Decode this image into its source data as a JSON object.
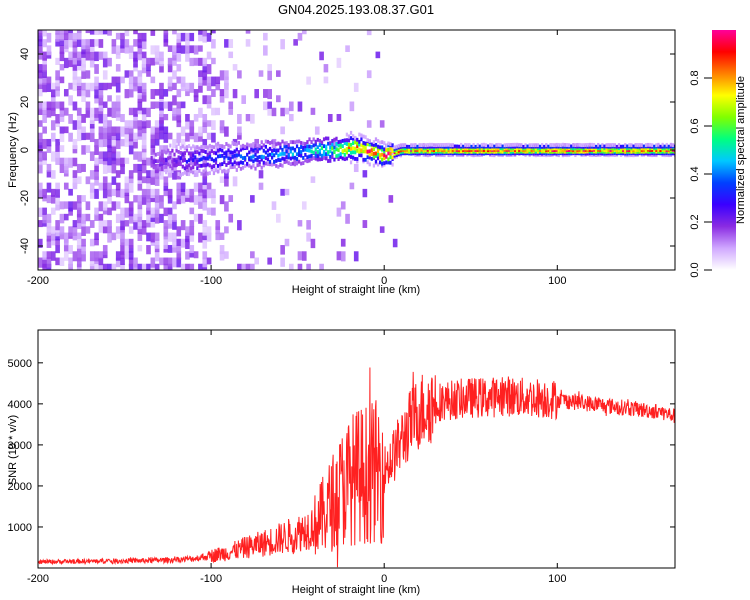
{
  "title": "GN04.2025.193.08.37.G01",
  "chart_data": [
    {
      "type": "heatmap",
      "title": "GN04.2025.193.08.37.G01",
      "xlabel": "Height of straight line (km)",
      "ylabel": "Frequency (Hz)",
      "xlim": [
        -200,
        168
      ],
      "ylim": [
        -50,
        50
      ],
      "xticks": [
        -200,
        -100,
        0,
        100
      ],
      "yticks": [
        -40,
        -20,
        0,
        20,
        40
      ],
      "colorbar": {
        "label": "Normalized spectral amplitude",
        "range": [
          0,
          1
        ],
        "ticks": [
          0.0,
          0.2,
          0.4,
          0.6,
          0.8
        ],
        "colormap": [
          "#ffffff",
          "#d0a8ff",
          "#8a2be2",
          "#3a00ff",
          "#0040ff",
          "#00c8ff",
          "#00ff80",
          "#80ff00",
          "#ffff00",
          "#ff8000",
          "#ff0000",
          "#ff0099"
        ]
      },
      "ridge": {
        "x": [
          -130,
          -110,
          -90,
          -70,
          -50,
          -40,
          -30,
          -20,
          -10,
          0,
          10,
          30,
          60,
          100,
          140,
          168
        ],
        "y": [
          -4,
          -4,
          -3,
          -2,
          -1,
          0,
          0,
          1,
          0,
          -2,
          0,
          0,
          0,
          0,
          0,
          0
        ],
        "amplitude": [
          0.2,
          0.3,
          0.35,
          0.4,
          0.45,
          0.5,
          0.6,
          0.85,
          0.9,
          0.95,
          0.9,
          0.9,
          0.9,
          0.9,
          0.9,
          0.9
        ]
      }
    },
    {
      "type": "line",
      "xlabel": "Height of straight line (km)",
      "ylabel": "SNR (10 * v/v)",
      "xlim": [
        -200,
        168
      ],
      "ylim": [
        0,
        5800
      ],
      "xticks": [
        -200,
        -100,
        0,
        100
      ],
      "yticks": [
        1000,
        2000,
        3000,
        4000,
        5000
      ],
      "color": "#ff2020",
      "x": [
        -200,
        -180,
        -160,
        -140,
        -120,
        -110,
        -100,
        -90,
        -80,
        -70,
        -60,
        -50,
        -45,
        -40,
        -35,
        -30,
        -25,
        -20,
        -15,
        -10,
        -5,
        0,
        5,
        10,
        15,
        20,
        25,
        30,
        40,
        50,
        60,
        70,
        80,
        90,
        100,
        110,
        120,
        130,
        140,
        150,
        160,
        168
      ],
      "y": [
        150,
        160,
        170,
        180,
        200,
        230,
        300,
        380,
        500,
        600,
        720,
        850,
        950,
        1050,
        1300,
        1600,
        1900,
        2150,
        2250,
        2300,
        2350,
        2400,
        2700,
        3100,
        3500,
        3800,
        3950,
        4050,
        4100,
        4150,
        4150,
        4200,
        4150,
        4150,
        4100,
        4050,
        4000,
        3950,
        3900,
        3850,
        3800,
        3700
      ]
    }
  ]
}
